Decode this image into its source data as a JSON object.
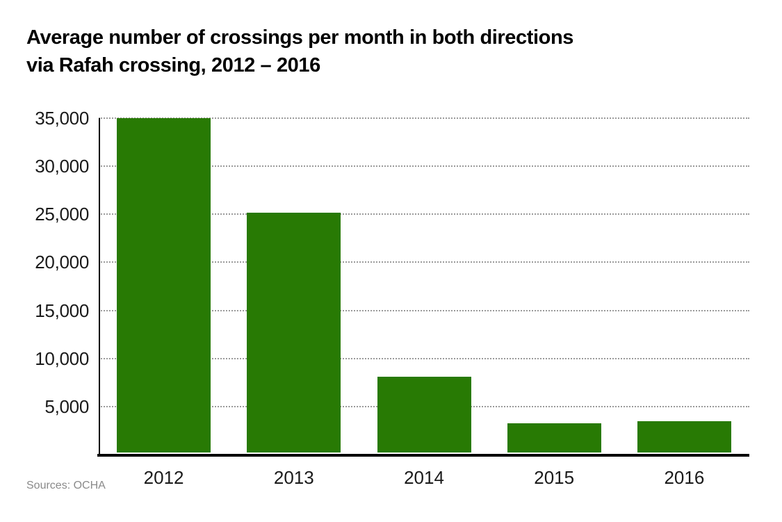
{
  "title": {
    "line1": "Average number of crossings per month in both directions",
    "line2": "via Rafah crossing, 2012 – 2016"
  },
  "source": "Sources: OCHA",
  "colors": {
    "bar": "#287a04",
    "axis": "#000000",
    "gridline": "#9a9a9a",
    "tick_label": "#1a1a1a",
    "source_text": "#8a8a8a",
    "background": "#ffffff"
  },
  "chart_data": {
    "type": "bar",
    "title": "Average number of crossings per month in both directions via Rafah crossing, 2012 – 2016",
    "categories": [
      "2012",
      "2013",
      "2014",
      "2015",
      "2016"
    ],
    "values": [
      35000,
      25200,
      8100,
      3250,
      3450
    ],
    "xlabel": "",
    "ylabel": "",
    "ylim": [
      0,
      35000
    ],
    "yticks": [
      5000,
      10000,
      15000,
      20000,
      25000,
      30000,
      35000
    ],
    "ytick_labels": [
      "5,000",
      "10,000",
      "15,000",
      "20,000",
      "25,000",
      "30,000",
      "35,000"
    ],
    "grid": "horizontal-dotted",
    "legend": "none",
    "bar_color": "#287a04",
    "annotation": "Sources: OCHA"
  }
}
